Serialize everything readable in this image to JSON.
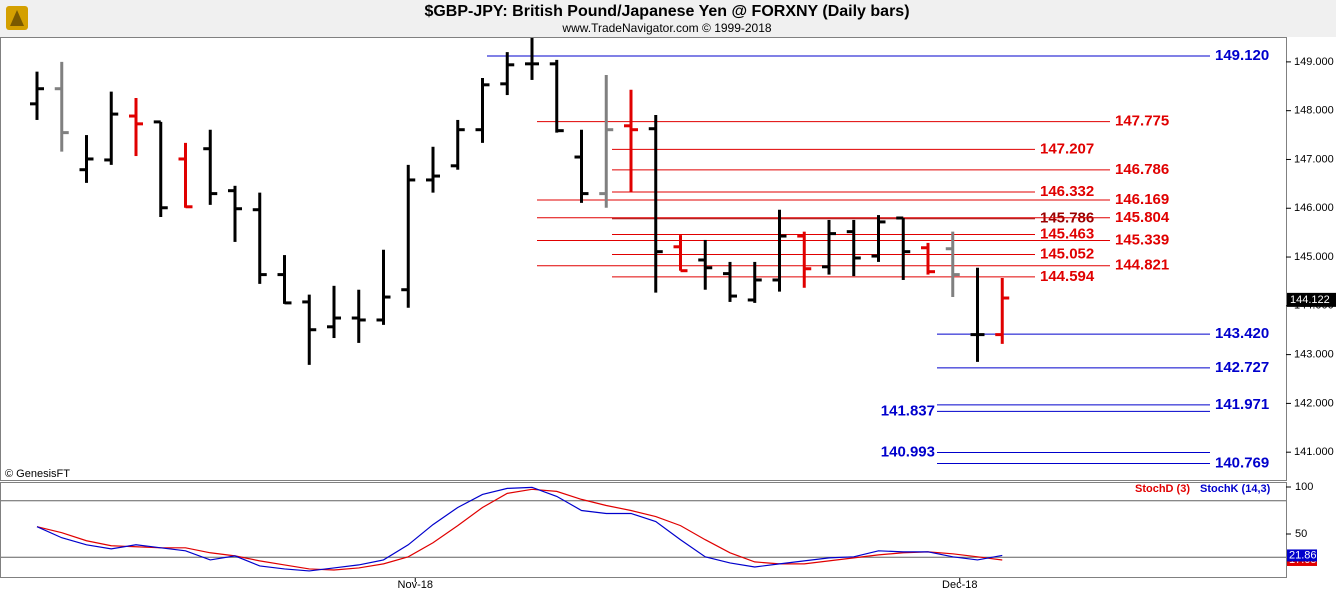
{
  "header": {
    "title": "$GBP-JPY:  British Pound/Japanese Yen @ FORXNY  (Daily bars)",
    "subtitle": "www.TradeNavigator.com © 1999-2018",
    "credit": "© GenesisFT"
  },
  "chart_data": [
    {
      "type": "ohlc",
      "categories": [
        null,
        null,
        null,
        null,
        null,
        null,
        null,
        null,
        null,
        null,
        null,
        null,
        null,
        null,
        null,
        "Nov-18",
        null,
        null,
        null,
        null,
        null,
        null,
        null,
        null,
        null,
        null,
        null,
        null,
        null,
        null,
        null,
        null,
        null,
        null,
        null,
        null,
        null,
        "Dec-18",
        null,
        null
      ],
      "open": [
        148.14,
        148.45,
        146.79,
        146.99,
        147.89,
        147.77,
        147.01,
        147.22,
        146.36,
        145.97,
        144.64,
        144.08,
        143.57,
        143.75,
        143.71,
        144.33,
        146.58,
        146.87,
        147.61,
        148.55,
        148.96,
        148.96,
        147.05,
        146.3,
        147.69,
        147.63,
        145.21,
        144.94,
        144.66,
        144.12,
        144.53,
        145.43,
        144.8,
        145.52,
        145.02,
        145.8,
        145.19,
        145.17,
        143.41,
        143.41
      ],
      "high": [
        148.8,
        149.0,
        147.5,
        148.39,
        148.26,
        147.77,
        147.34,
        147.61,
        146.46,
        146.32,
        145.04,
        144.23,
        144.41,
        144.33,
        145.15,
        146.89,
        147.26,
        147.81,
        148.67,
        149.2,
        149.49,
        149.04,
        147.61,
        148.73,
        148.43,
        147.91,
        145.45,
        145.35,
        144.9,
        144.9,
        145.97,
        145.52,
        145.76,
        145.76,
        145.86,
        145.8,
        145.29,
        145.52,
        144.78,
        144.57
      ],
      "low": [
        147.81,
        147.16,
        146.52,
        146.89,
        147.07,
        145.82,
        146.01,
        146.07,
        145.31,
        144.45,
        144.04,
        142.79,
        143.34,
        143.24,
        143.61,
        143.96,
        146.32,
        146.79,
        147.34,
        148.32,
        148.63,
        147.55,
        146.11,
        146.01,
        146.34,
        144.27,
        144.72,
        144.33,
        144.08,
        144.06,
        144.29,
        144.37,
        144.64,
        144.61,
        144.9,
        144.53,
        144.64,
        144.18,
        142.85,
        143.22
      ],
      "close": [
        148.45,
        147.55,
        147.01,
        147.93,
        147.73,
        146.01,
        146.03,
        146.3,
        145.99,
        144.64,
        144.06,
        143.51,
        143.75,
        143.71,
        144.18,
        146.58,
        146.66,
        147.61,
        148.53,
        148.94,
        148.96,
        147.59,
        146.3,
        147.61,
        147.61,
        145.11,
        144.72,
        144.78,
        144.2,
        144.53,
        145.43,
        144.76,
        145.48,
        144.98,
        145.72,
        145.11,
        144.7,
        144.64,
        143.41,
        144.16
      ],
      "colors": [
        "#000000",
        "#808080",
        "#000000",
        "#000000",
        "#e00000",
        "#000000",
        "#e00000",
        "#000000",
        "#000000",
        "#000000",
        "#000000",
        "#000000",
        "#000000",
        "#000000",
        "#000000",
        "#000000",
        "#000000",
        "#000000",
        "#000000",
        "#000000",
        "#000000",
        "#000000",
        "#000000",
        "#808080",
        "#e00000",
        "#000000",
        "#e00000",
        "#000000",
        "#000000",
        "#000000",
        "#000000",
        "#e00000",
        "#000000",
        "#000000",
        "#000000",
        "#000000",
        "#e00000",
        "#808080",
        "#000000",
        "#e00000"
      ],
      "ylim": [
        140.43,
        149.51
      ],
      "yticks": [
        {
          "value": 141,
          "label": "141.000"
        },
        {
          "value": 142,
          "label": "142.000"
        },
        {
          "value": 143,
          "label": "143.000"
        },
        {
          "value": 144,
          "label": "144.000"
        },
        {
          "value": 145,
          "label": "145.000"
        },
        {
          "value": 146,
          "label": "146.000"
        },
        {
          "value": 147,
          "label": "147.000"
        },
        {
          "value": 148,
          "label": "148.000"
        },
        {
          "value": 149,
          "label": "149.000"
        }
      ],
      "last_price": 144.122,
      "levels": [
        {
          "value": 149.12,
          "label": "149.120",
          "color": "#0000cc"
        },
        {
          "value": 147.775,
          "label": "147.775",
          "color": "#e00000"
        },
        {
          "value": 147.207,
          "label": "147.207",
          "color": "#e00000"
        },
        {
          "value": 146.786,
          "label": "146.786",
          "color": "#e00000"
        },
        {
          "value": 146.332,
          "label": "146.332",
          "color": "#e00000"
        },
        {
          "value": 146.169,
          "label": "146.169",
          "color": "#e00000"
        },
        {
          "value": 145.786,
          "label": "145.786",
          "color": "#990000"
        },
        {
          "value": 145.804,
          "label": "145.804",
          "color": "#e00000"
        },
        {
          "value": 145.463,
          "label": "145.463",
          "color": "#e00000"
        },
        {
          "value": 145.339,
          "label": "145.339",
          "color": "#e00000"
        },
        {
          "value": 145.052,
          "label": "145.052",
          "color": "#e00000"
        },
        {
          "value": 144.821,
          "label": "144.821",
          "color": "#e00000"
        },
        {
          "value": 144.594,
          "label": "144.594",
          "color": "#e00000"
        },
        {
          "value": 143.42,
          "label": "143.420",
          "color": "#0000cc"
        },
        {
          "value": 142.727,
          "label": "142.727",
          "color": "#0000cc"
        },
        {
          "value": 141.971,
          "label": "141.971",
          "color": "#0000cc"
        },
        {
          "value": 141.837,
          "label": "141.837",
          "color": "#0000cc"
        },
        {
          "value": 140.993,
          "label": "140.993",
          "color": "#0000cc"
        },
        {
          "value": 140.769,
          "label": "140.769",
          "color": "#0000cc"
        }
      ]
    },
    {
      "type": "line",
      "series": [
        {
          "name": "StochD (3)",
          "color": "#e00000",
          "values": [
            52.5,
            46.1,
            37.5,
            32.2,
            31.1,
            30.0,
            30.0,
            24.7,
            21.4,
            16.1,
            11.8,
            7.5,
            6.4,
            8.6,
            12.9,
            20.4,
            35.4,
            53.6,
            72.9,
            87.9,
            92.2,
            90.0,
            81.5,
            75.0,
            69.7,
            63.2,
            53.6,
            38.6,
            24.7,
            15.0,
            12.9,
            12.9,
            16.1,
            19.3,
            22.5,
            24.7,
            25.7,
            23.6,
            20.4,
            17.05
          ]
        },
        {
          "name": "StochK (14,3)",
          "color": "#0000cc",
          "values": [
            52.5,
            40.7,
            33.2,
            28.9,
            33.2,
            30.0,
            26.8,
            17.1,
            21.4,
            10.7,
            7.5,
            5.4,
            8.6,
            11.8,
            17.1,
            33.2,
            54.7,
            72.9,
            86.8,
            93.2,
            94.3,
            84.7,
            69.7,
            66.5,
            66.5,
            57.9,
            38.6,
            20.4,
            13.9,
            9.6,
            12.9,
            16.1,
            19.3,
            20.4,
            26.8,
            25.7,
            25.7,
            20.4,
            17.1,
            21.86
          ]
        }
      ],
      "ylim": [
        0,
        100
      ],
      "yticks": [
        50,
        100
      ],
      "ref_lines": [
        20,
        80
      ]
    }
  ]
}
